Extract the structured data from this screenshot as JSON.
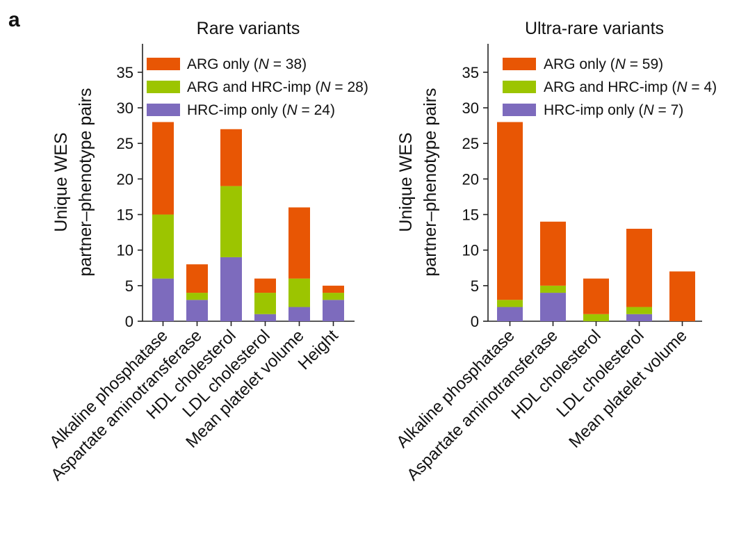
{
  "figure": {
    "panel_letter": "a"
  },
  "colors": {
    "arg_only": "#e85604",
    "arg_and_hrc": "#9cc500",
    "hrc_only": "#7d6bbd",
    "axis": "#222222"
  },
  "chart_data": [
    {
      "type": "bar",
      "stacked": true,
      "title": "Rare variants",
      "ylabel_lines": [
        "Unique WES",
        "partner–phenotype pairs"
      ],
      "xlabel": "",
      "ylim": [
        0,
        39
      ],
      "yticks": [
        0,
        5,
        10,
        15,
        20,
        25,
        30,
        35
      ],
      "legend_position": "top-right",
      "categories": [
        "Alkaline phosphatase",
        "Aspartate aminotransferase",
        "HDL cholesterol",
        "LDL cholesterol",
        "Mean platelet volume",
        "Height"
      ],
      "series": [
        {
          "key": "hrc_only",
          "name": "HRC-imp only",
          "n": "24",
          "values": [
            6,
            3,
            9,
            1,
            2,
            3
          ]
        },
        {
          "key": "arg_and_hrc",
          "name": "ARG and HRC-imp",
          "n": "28",
          "values": [
            9,
            1,
            10,
            3,
            4,
            1
          ]
        },
        {
          "key": "arg_only",
          "name": "ARG only",
          "n": "38",
          "values": [
            13,
            4,
            8,
            2,
            10,
            1
          ]
        }
      ]
    },
    {
      "type": "bar",
      "stacked": true,
      "title": "Ultra-rare variants",
      "ylabel_lines": [
        "Unique WES",
        "partner–phenotype pairs"
      ],
      "xlabel": "",
      "ylim": [
        0,
        39
      ],
      "yticks": [
        0,
        5,
        10,
        15,
        20,
        25,
        30,
        35
      ],
      "legend_position": "top-right",
      "categories": [
        "Alkaline phosphatase",
        "Aspartate aminotransferase",
        "HDL cholesterol",
        "LDL cholesterol",
        "Mean platelet volume"
      ],
      "series": [
        {
          "key": "hrc_only",
          "name": "HRC-imp only",
          "n": "7",
          "values": [
            2,
            4,
            0,
            1,
            0
          ]
        },
        {
          "key": "arg_and_hrc",
          "name": "ARG and HRC-imp",
          "n": "4",
          "values": [
            1,
            1,
            1,
            1,
            0
          ]
        },
        {
          "key": "arg_only",
          "name": "ARG only",
          "n": "59",
          "values": [
            25,
            9,
            5,
            11,
            7
          ]
        }
      ]
    }
  ]
}
